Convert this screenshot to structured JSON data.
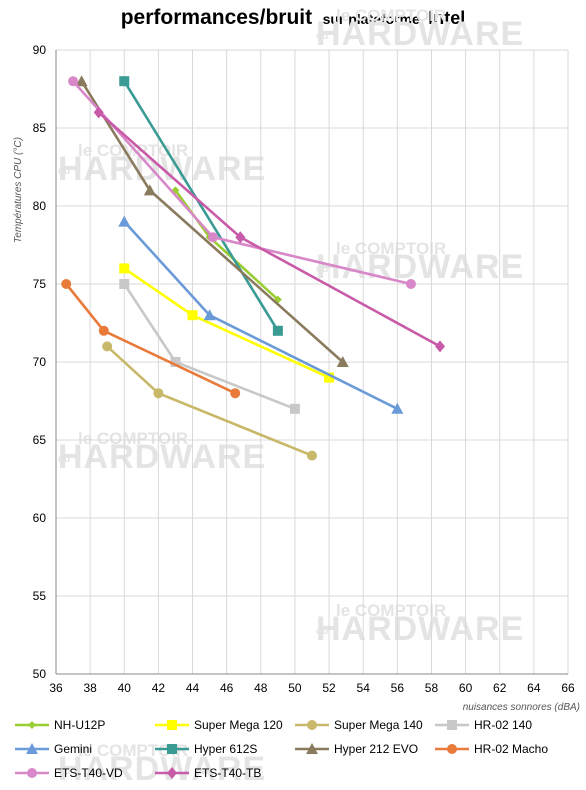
{
  "title": {
    "main": "performances/bruit",
    "sub": "sur plateforme",
    "tail": "Intel"
  },
  "watermark": {
    "top": "le COMPTOIR",
    "small": "du",
    "main": "HARDWARE"
  },
  "chart_data": {
    "type": "line",
    "xlabel": "nuisances sonnores (dBA)",
    "ylabel": "Températures  CPU (°C)",
    "xlim": [
      36,
      66
    ],
    "ylim": [
      50,
      90
    ],
    "xticks": [
      36,
      38,
      40,
      42,
      44,
      46,
      48,
      50,
      52,
      54,
      56,
      58,
      60,
      62,
      64,
      66
    ],
    "yticks": [
      50,
      55,
      60,
      65,
      70,
      75,
      80,
      85,
      90
    ],
    "grid": true,
    "legend_position": "bottom",
    "series": [
      {
        "name": "NH-U12P",
        "color": "#9acd32",
        "marker": "diamond-small",
        "points": [
          [
            43,
            81
          ],
          [
            45,
            78
          ],
          [
            49,
            74
          ]
        ]
      },
      {
        "name": "Super Mega 120",
        "color": "#ffff00",
        "marker": "square",
        "points": [
          [
            40,
            76
          ],
          [
            44,
            73
          ],
          [
            52,
            69
          ]
        ]
      },
      {
        "name": "Super Mega 140",
        "color": "#c8b86a",
        "marker": "circle",
        "points": [
          [
            39,
            71
          ],
          [
            42,
            68
          ],
          [
            51,
            64
          ]
        ]
      },
      {
        "name": "HR-02 140",
        "color": "#c8c8c8",
        "marker": "square",
        "points": [
          [
            40,
            75
          ],
          [
            43,
            70
          ],
          [
            50,
            67
          ]
        ]
      },
      {
        "name": "Gemini",
        "color": "#6a9ad8",
        "marker": "triangle",
        "points": [
          [
            40,
            79
          ],
          [
            45,
            73
          ],
          [
            56,
            67
          ]
        ]
      },
      {
        "name": "Hyper 612S",
        "color": "#3a9a94",
        "marker": "square",
        "points": [
          [
            40,
            88
          ],
          [
            49,
            72
          ]
        ]
      },
      {
        "name": "Hyper 212 EVO",
        "color": "#8a7a5e",
        "marker": "triangle",
        "points": [
          [
            37.5,
            88
          ],
          [
            41.5,
            81
          ],
          [
            52.8,
            70
          ]
        ]
      },
      {
        "name": "HR-02 Macho",
        "color": "#e87a3a",
        "marker": "circle",
        "points": [
          [
            36.6,
            75
          ],
          [
            38.8,
            72
          ],
          [
            46.5,
            68
          ]
        ]
      },
      {
        "name": "ETS-T40-VD",
        "color": "#d888c8",
        "marker": "circle",
        "points": [
          [
            37,
            88
          ],
          [
            45.2,
            78
          ],
          [
            56.8,
            75
          ]
        ]
      },
      {
        "name": "ETS-T40-TB",
        "color": "#c85aa8",
        "marker": "diamond",
        "points": [
          [
            38.5,
            86
          ],
          [
            46.8,
            78
          ],
          [
            58.5,
            71
          ]
        ]
      }
    ]
  }
}
